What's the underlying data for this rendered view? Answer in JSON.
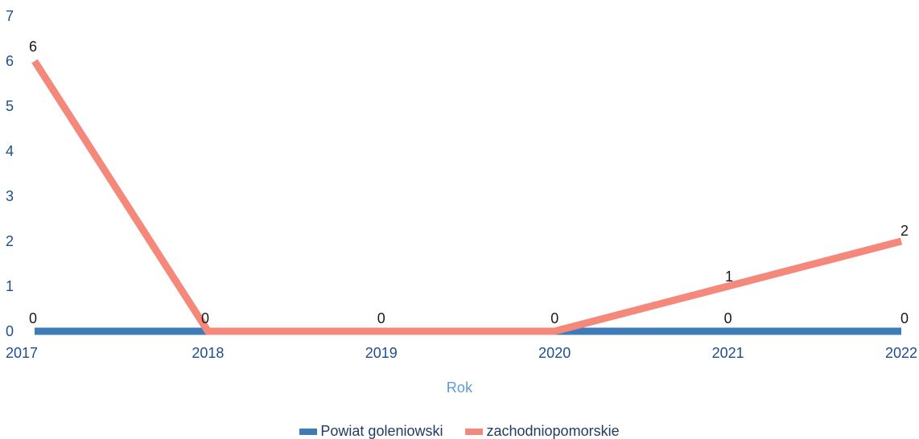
{
  "chart_data": {
    "type": "line",
    "categories": [
      "2017",
      "2018",
      "2019",
      "2020",
      "2021",
      "2022"
    ],
    "series": [
      {
        "name": "Powiat goleniowski",
        "values": [
          0,
          0,
          0,
          0,
          0,
          0
        ],
        "color": "#3d7cb8"
      },
      {
        "name": "zachodniopomorskie",
        "values": [
          6,
          0,
          0,
          0,
          1,
          2
        ],
        "color": "#f4897b"
      }
    ],
    "data_labels": [
      {
        "category": "2017",
        "text": "6"
      },
      {
        "category": "2017",
        "text": "0"
      },
      {
        "category": "2018",
        "text": "0"
      },
      {
        "category": "2019",
        "text": "0"
      },
      {
        "category": "2020",
        "text": "0"
      },
      {
        "category": "2021",
        "text": "1"
      },
      {
        "category": "2021",
        "text": "0"
      },
      {
        "category": "2022",
        "text": "2"
      },
      {
        "category": "2022",
        "text": "0"
      }
    ],
    "xlabel": "Rok",
    "ylabel": "",
    "ylim": [
      0,
      7
    ],
    "yticks": [
      "0",
      "1",
      "2",
      "3",
      "4",
      "5",
      "6",
      "7"
    ],
    "grid": false,
    "legend_position": "bottom"
  }
}
